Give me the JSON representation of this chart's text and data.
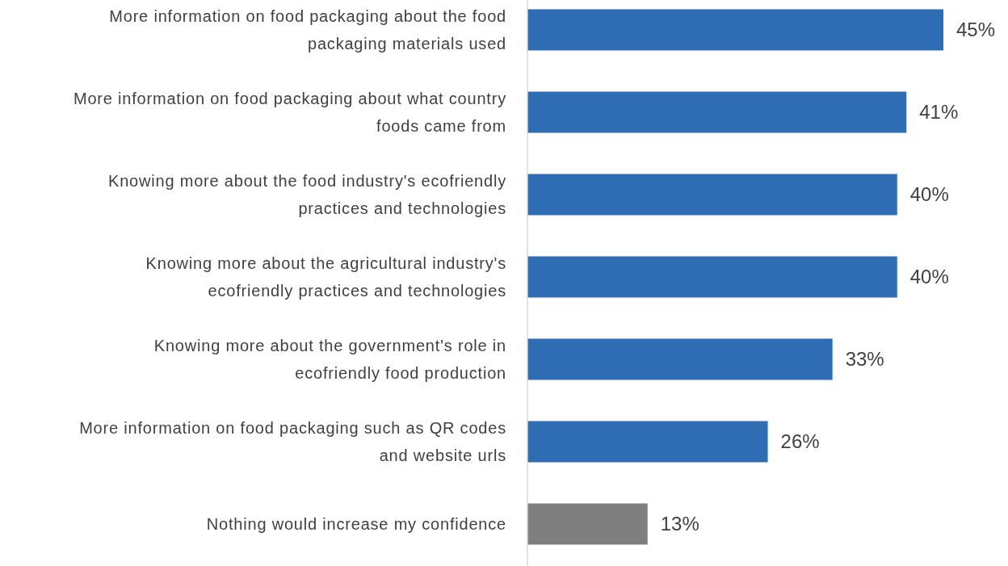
{
  "chart_data": {
    "type": "bar",
    "orientation": "horizontal",
    "categories": [
      "More information on food packaging about the food packaging materials used",
      "More information on food packaging about what country foods came from",
      "Knowing more about the food industry's ecofriendly practices and technologies",
      "Knowing more about the agricultural industry's ecofriendly practices and technologies",
      "Knowing more about the government's role in ecofriendly food production",
      "More information on food packaging such as QR codes and website urls",
      "Nothing would increase my confidence"
    ],
    "values": [
      45,
      41,
      40,
      40,
      33,
      26,
      13
    ],
    "colors": [
      "#2e6db4",
      "#2e6db4",
      "#2e6db4",
      "#2e6db4",
      "#2e6db4",
      "#2e6db4",
      "#7f7f7f"
    ],
    "value_labels": [
      "45%",
      "41%",
      "40%",
      "40%",
      "33%",
      "26%",
      "13%"
    ],
    "data_labels": false
  }
}
